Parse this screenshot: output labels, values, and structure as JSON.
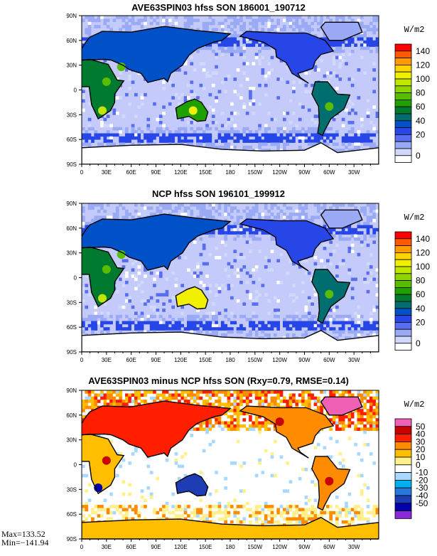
{
  "chart_data": [
    {
      "type": "heatmap",
      "title": "AVE63SPIN03 hfss SON 186001_190712",
      "x_ticks": [
        "0",
        "30E",
        "60E",
        "90E",
        "120E",
        "150E",
        "180",
        "150W",
        "120W",
        "90W",
        "60W",
        "30W"
      ],
      "y_ticks": [
        "90N",
        "60N",
        "30N",
        "0",
        "30S",
        "60S",
        "90S"
      ],
      "colorbar": {
        "units": "W/m2",
        "labels": [
          "140",
          "120",
          "100",
          "80",
          "60",
          "40",
          "20",
          "0"
        ],
        "colors": [
          "#ff0000",
          "#ff5a00",
          "#ff9a00",
          "#ffd400",
          "#f0f000",
          "#bfe600",
          "#8fd400",
          "#58bd00",
          "#1ea000",
          "#007a2e",
          "#006e6e",
          "#0050c8",
          "#2646e8",
          "#5a6ef0",
          "#9aaaf4",
          "#d0d8fc",
          "#ffffff"
        ]
      }
    },
    {
      "type": "heatmap",
      "title": "NCP hfss SON 196101_199912",
      "x_ticks": [
        "0",
        "30E",
        "60E",
        "90E",
        "120E",
        "150E",
        "180",
        "150W",
        "120W",
        "90W",
        "60W",
        "30W"
      ],
      "y_ticks": [
        "90N",
        "60N",
        "30N",
        "0",
        "30S",
        "60S",
        "90S"
      ],
      "colorbar": {
        "units": "W/m2",
        "labels": [
          "140",
          "120",
          "100",
          "80",
          "60",
          "40",
          "20",
          "0"
        ],
        "colors": [
          "#ff0000",
          "#ff5a00",
          "#ff9a00",
          "#ffd400",
          "#f0f000",
          "#bfe600",
          "#8fd400",
          "#58bd00",
          "#1ea000",
          "#007a2e",
          "#006e6e",
          "#0050c8",
          "#2646e8",
          "#5a6ef0",
          "#9aaaf4",
          "#d0d8fc",
          "#ffffff"
        ]
      }
    },
    {
      "type": "heatmap",
      "title": "AVE63SPIN03 minus NCP hfss SON (Rxy=0.79, RMSE=0.14)",
      "x_ticks": [
        "0",
        "30E",
        "60E",
        "90E",
        "120E",
        "150E",
        "180",
        "150W",
        "120W",
        "90W",
        "60W",
        "30W"
      ],
      "y_ticks": [
        "90N",
        "60N",
        "30N",
        "0",
        "30S",
        "60S",
        "90S"
      ],
      "colorbar": {
        "units": "W/m2",
        "labels": [
          "50",
          "40",
          "30",
          "20",
          "10",
          "0",
          "-10",
          "-20",
          "-30",
          "-40",
          "-50"
        ],
        "colors": [
          "#f060b4",
          "#c80000",
          "#ff1e00",
          "#ff8c00",
          "#ffbe00",
          "#fff08c",
          "#ffffff",
          "#a8d8ff",
          "#00b0f0",
          "#2878dc",
          "#1e3cb4",
          "#0000aa",
          "#8c28dc"
        ]
      },
      "annotations": [
        "Max=133.52",
        "Min=−141.94"
      ]
    }
  ],
  "colors": {
    "ocean_fill": "#c4cbfa",
    "frame": "#000000"
  }
}
